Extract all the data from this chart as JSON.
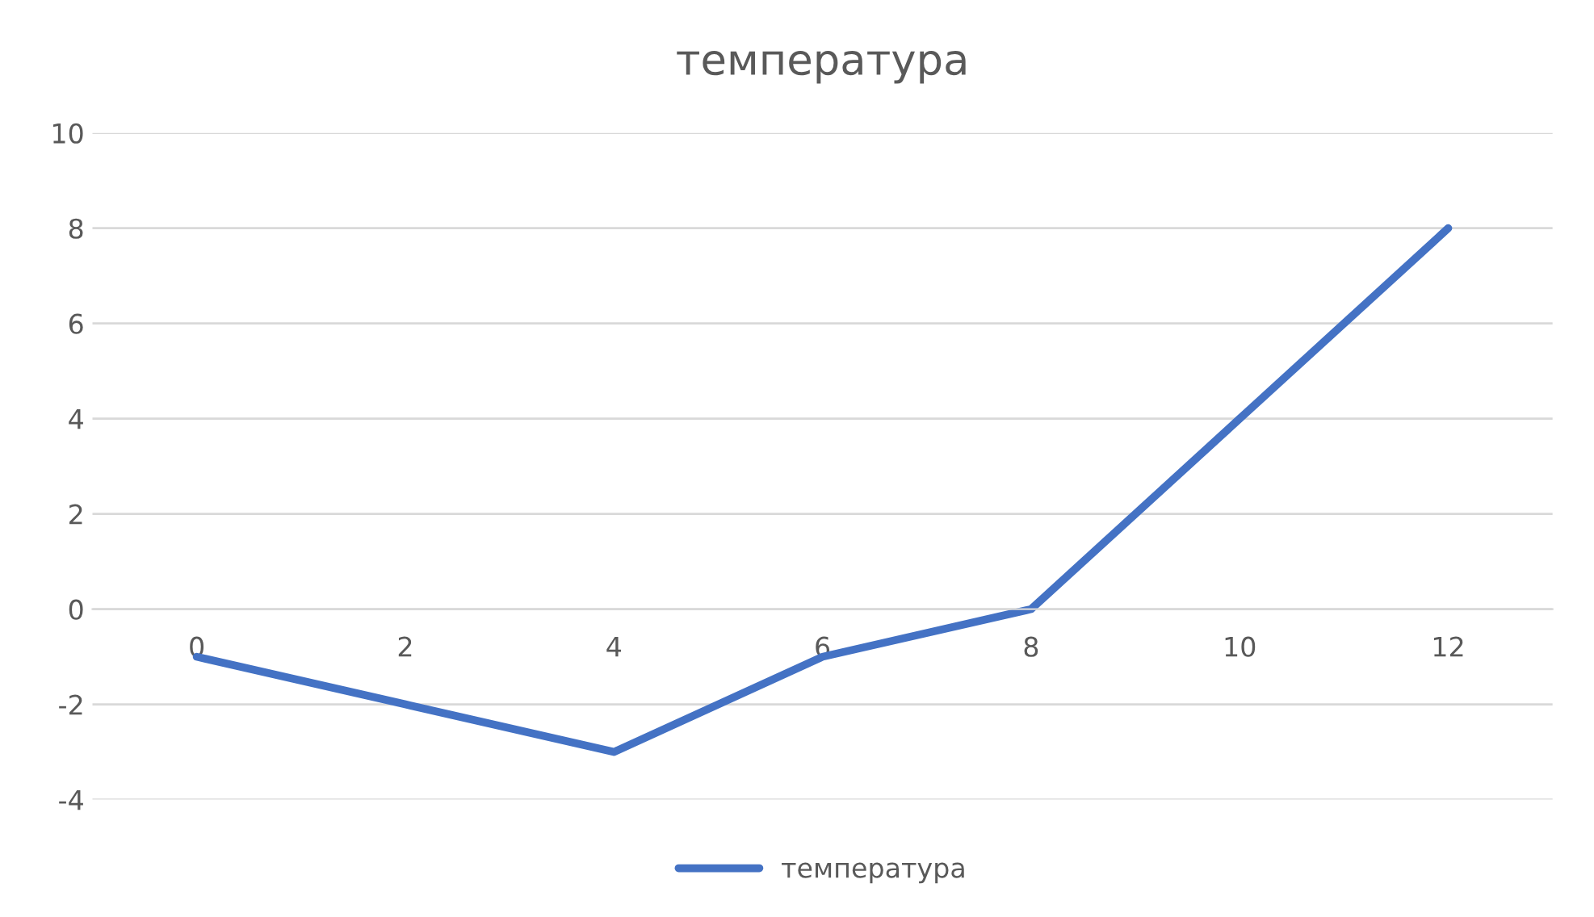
{
  "chart_data": {
    "type": "line",
    "title": "температура",
    "categories": [
      "0",
      "2",
      "4",
      "6",
      "8",
      "10",
      "12"
    ],
    "series": [
      {
        "name": "температура",
        "color": "#4472c4",
        "values": [
          -1,
          -2,
          -3,
          -1,
          0,
          4,
          8
        ]
      }
    ],
    "ylim": [
      -4,
      10
    ],
    "yticks": [
      -4,
      -2,
      0,
      2,
      4,
      6,
      8,
      10
    ],
    "grid": "y",
    "legend": "bottom",
    "marker": "none",
    "line_style": "solid"
  }
}
